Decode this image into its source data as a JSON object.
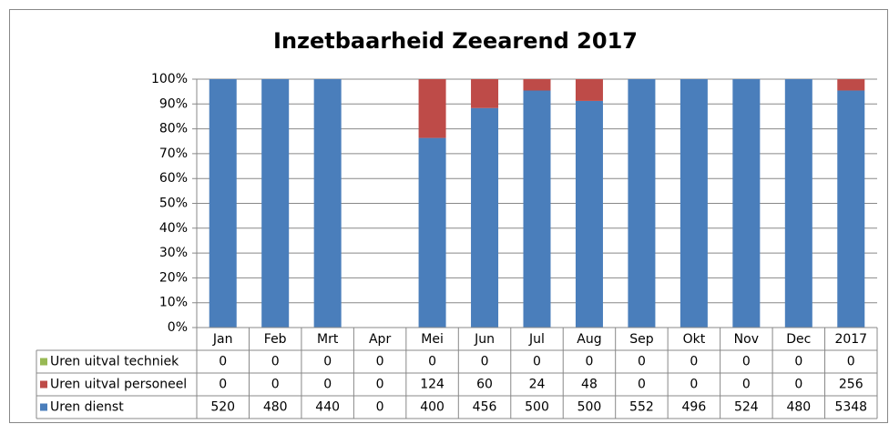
{
  "chart_data": {
    "type": "bar",
    "stacking": "percent",
    "title": "Inzetbaarheid Zeearend 2017",
    "categories": [
      "Jan",
      "Feb",
      "Mrt",
      "Apr",
      "Mei",
      "Jun",
      "Jul",
      "Aug",
      "Sep",
      "Okt",
      "Nov",
      "Dec",
      "2017"
    ],
    "series": [
      {
        "name": "Uren dienst",
        "color": "#4a7ebb",
        "values": [
          520,
          480,
          440,
          0,
          400,
          456,
          500,
          500,
          552,
          496,
          524,
          480,
          5348
        ]
      },
      {
        "name": "Uren uitval personeel",
        "color": "#be4b48",
        "values": [
          0,
          0,
          0,
          0,
          124,
          60,
          24,
          48,
          0,
          0,
          0,
          0,
          256
        ]
      },
      {
        "name": "Uren uitval techniek",
        "color": "#98b954",
        "values": [
          0,
          0,
          0,
          0,
          0,
          0,
          0,
          0,
          0,
          0,
          0,
          0,
          0
        ]
      }
    ],
    "ylim": [
      0,
      100
    ],
    "yticks": [
      {
        "value": 0,
        "label": "0%"
      },
      {
        "value": 10,
        "label": "10%"
      },
      {
        "value": 20,
        "label": "20%"
      },
      {
        "value": 30,
        "label": "30%"
      },
      {
        "value": 40,
        "label": "40%"
      },
      {
        "value": 50,
        "label": "50%"
      },
      {
        "value": 60,
        "label": "60%"
      },
      {
        "value": 70,
        "label": "70%"
      },
      {
        "value": 80,
        "label": "80%"
      },
      {
        "value": 90,
        "label": "90%"
      },
      {
        "value": 100,
        "label": "100%"
      }
    ],
    "grid": true,
    "data_table": true
  }
}
